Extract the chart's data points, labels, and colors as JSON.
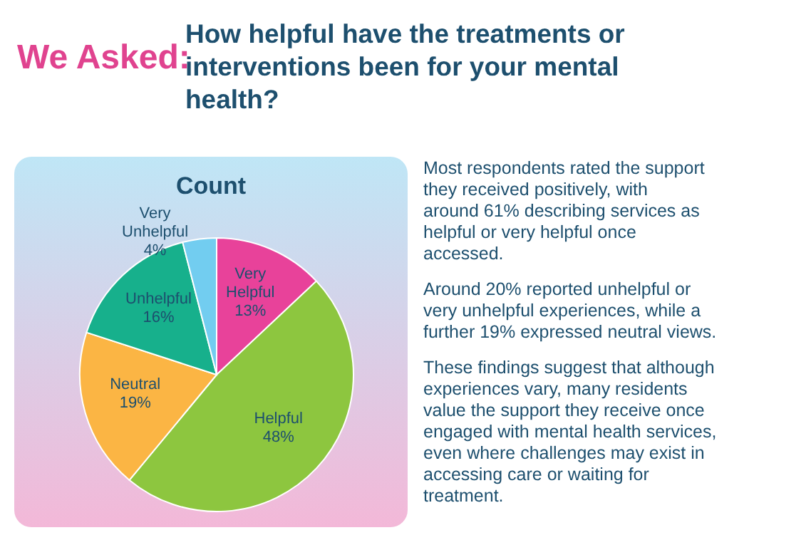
{
  "chart_data": {
    "type": "pie",
    "title": "Count",
    "categories": [
      "Very Helpful",
      "Helpful",
      "Neutral",
      "Unhelpful",
      "Very Unhelpful"
    ],
    "values": [
      13,
      48,
      19,
      16,
      4
    ],
    "colors": [
      "#e8429a",
      "#8dc63f",
      "#fbb544",
      "#17b08c",
      "#72cdf0"
    ],
    "value_labels": [
      "13%",
      "48%",
      "19%",
      "16%",
      "4%"
    ],
    "annotations": [
      "We Asked:",
      "How helpful have the treatments or interventions been for your mental health?",
      "Most respondents rated the support they received positively, with around 61% describing services as helpful or very helpful once accessed.",
      "Around 20% reported unhelpful or very unhelpful experiences, while a further 19% expressed neutral views.",
      "These findings suggest that although experiences vary, many residents value the support they receive once engaged with mental health services, even where challenges may exist in accessing care or waiting for treatment."
    ]
  }
}
